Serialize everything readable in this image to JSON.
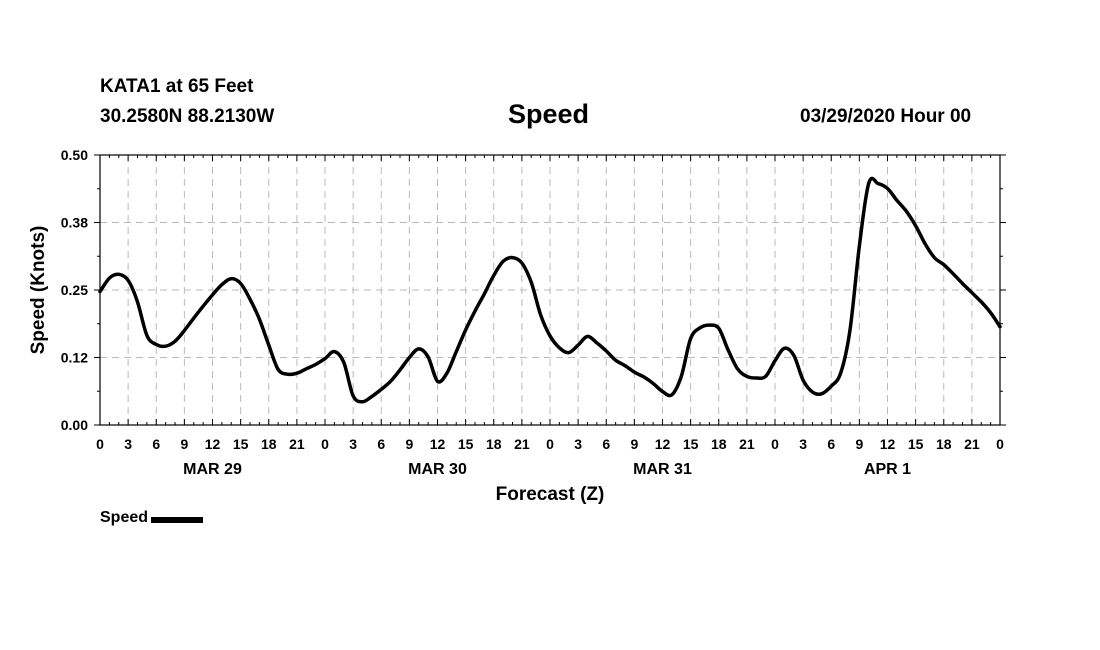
{
  "header": {
    "station": "KATA1 at 65 Feet",
    "coords": "30.2580N 88.2130W",
    "title": "Speed",
    "timestamp": "03/29/2020 Hour 00"
  },
  "legend": {
    "label": "Speed"
  },
  "colors": {
    "line": "#000000",
    "grid": "#bbbbbb"
  },
  "chart_data": {
    "type": "line",
    "title": "Speed",
    "xlabel": "Forecast (Z)",
    "ylabel": "Speed (Knots)",
    "xlim": [
      0,
      96
    ],
    "ylim": [
      0,
      0.5
    ],
    "yticks": [
      "0.00",
      "0.12",
      "0.25",
      "0.38",
      "0.50"
    ],
    "ytick_values": [
      0,
      0.125,
      0.25,
      0.375,
      0.5
    ],
    "xtick_labels": [
      "0",
      "3",
      "6",
      "9",
      "12",
      "15",
      "18",
      "21",
      "0",
      "3",
      "6",
      "9",
      "12",
      "15",
      "18",
      "21",
      "0",
      "3",
      "6",
      "9",
      "12",
      "15",
      "18",
      "21",
      "0",
      "3",
      "6",
      "9",
      "12",
      "15",
      "18",
      "21",
      "0"
    ],
    "day_labels": [
      {
        "label": "MAR 29",
        "hour": 12
      },
      {
        "label": "MAR 30",
        "hour": 36
      },
      {
        "label": "MAR 31",
        "hour": 60
      },
      {
        "label": "APR 1",
        "hour": 84
      }
    ],
    "grid": true,
    "series": [
      {
        "name": "Speed",
        "x": [
          0,
          1,
          2,
          3,
          4,
          5,
          6,
          7,
          8,
          9,
          10,
          11,
          12,
          13,
          14,
          15,
          16,
          17,
          18,
          19,
          20,
          21,
          22,
          23,
          24,
          25,
          26,
          27,
          28,
          29,
          30,
          31,
          32,
          33,
          34,
          35,
          36,
          37,
          38,
          39,
          40,
          41,
          42,
          43,
          44,
          45,
          46,
          47,
          48,
          49,
          50,
          51,
          52,
          53,
          54,
          55,
          56,
          57,
          58,
          59,
          60,
          61,
          62,
          63,
          64,
          65,
          66,
          67,
          68,
          69,
          70,
          71,
          72,
          73,
          74,
          75,
          76,
          77,
          78,
          79,
          80,
          81,
          82,
          83,
          84,
          85,
          86,
          87,
          88,
          89,
          90,
          91,
          92,
          93,
          94,
          95,
          96
        ],
        "values": [
          0.247,
          0.272,
          0.279,
          0.268,
          0.228,
          0.166,
          0.149,
          0.146,
          0.155,
          0.175,
          0.198,
          0.22,
          0.241,
          0.26,
          0.271,
          0.262,
          0.233,
          0.196,
          0.148,
          0.103,
          0.094,
          0.096,
          0.104,
          0.112,
          0.123,
          0.136,
          0.116,
          0.054,
          0.043,
          0.053,
          0.066,
          0.081,
          0.102,
          0.125,
          0.141,
          0.126,
          0.081,
          0.096,
          0.136,
          0.176,
          0.211,
          0.243,
          0.277,
          0.303,
          0.31,
          0.3,
          0.264,
          0.204,
          0.165,
          0.143,
          0.134,
          0.148,
          0.164,
          0.152,
          0.137,
          0.12,
          0.11,
          0.098,
          0.089,
          0.077,
          0.062,
          0.056,
          0.09,
          0.16,
          0.18,
          0.185,
          0.179,
          0.139,
          0.104,
          0.09,
          0.087,
          0.09,
          0.119,
          0.142,
          0.129,
          0.083,
          0.061,
          0.058,
          0.072,
          0.096,
          0.176,
          0.332,
          0.448,
          0.447,
          0.438,
          0.416,
          0.396,
          0.369,
          0.336,
          0.31,
          0.297,
          0.28,
          0.262,
          0.245,
          0.228,
          0.208,
          0.182
        ]
      }
    ]
  }
}
